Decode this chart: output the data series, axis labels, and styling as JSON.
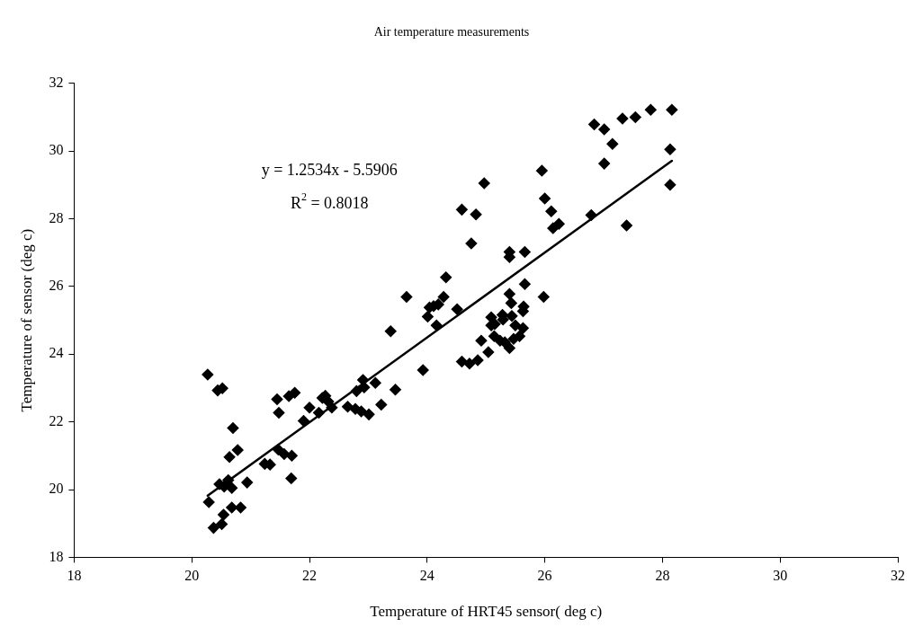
{
  "chart_data": {
    "type": "scatter",
    "title": "Air temperature measurements",
    "xlabel": "Temperature of HRT45 sensor( deg c)",
    "ylabel": "Temperature of sensor (deg c)",
    "xlim": [
      18,
      32
    ],
    "xticks": [
      18,
      20,
      22,
      24,
      26,
      28,
      30,
      32
    ],
    "ylim": [
      18,
      32
    ],
    "yticks": [
      18,
      20,
      22,
      24,
      26,
      28,
      30,
      32
    ],
    "grid": false,
    "legend": false,
    "marker": "diamond",
    "annotations": [
      "y = 1.2534x - 5.5906",
      "R$^{2}$ = 0.8018"
    ],
    "series": [
      {
        "color": "#000000",
        "x": [
          25.95,
          26.0,
          26.11,
          26.14,
          26.24,
          25.98,
          26.79,
          26.84,
          27.01,
          27.15,
          27.01,
          27.32,
          27.54,
          27.8,
          28.16,
          28.13,
          28.13,
          27.39,
          24.59,
          24.83,
          24.75,
          25.4,
          25.4,
          25.66,
          24.32,
          23.65,
          24.28,
          24.04,
          24.11,
          24.19,
          24.01,
          24.51,
          24.16,
          23.38,
          25.66,
          25.4,
          25.43,
          25.64,
          25.63,
          25.09,
          25.28,
          25.44,
          25.09,
          25.15,
          25.29,
          25.5,
          25.63,
          25.14,
          25.57,
          25.24,
          25.32,
          25.4,
          25.47,
          24.92,
          25.04,
          24.59,
          24.72,
          24.86,
          23.93,
          23.46,
          23.22,
          24.97,
          22.91,
          22.93,
          22.8,
          23.12,
          22.65,
          22.78,
          22.88,
          23.01,
          21.9,
          22.0,
          22.16,
          22.22,
          22.27,
          22.32,
          22.38,
          21.45,
          21.65,
          21.75,
          21.48,
          20.27,
          20.44,
          20.52,
          20.7,
          20.78,
          20.64,
          21.47,
          21.57,
          21.7,
          21.24,
          21.33,
          21.69,
          20.94,
          20.47,
          20.55,
          20.62,
          20.68,
          20.29,
          20.68,
          20.83,
          20.54,
          20.51,
          20.37
        ],
        "values": [
          29.42,
          28.6,
          28.22,
          27.72,
          27.85,
          25.69,
          28.11,
          30.79,
          30.64,
          30.21,
          29.63,
          30.96,
          31.0,
          31.22,
          31.22,
          30.05,
          29.0,
          27.8,
          28.27,
          28.13,
          27.27,
          27.02,
          26.87,
          27.02,
          26.27,
          25.69,
          25.69,
          25.38,
          25.42,
          25.47,
          25.11,
          25.33,
          24.85,
          24.68,
          26.07,
          25.78,
          25.51,
          25.41,
          25.27,
          25.09,
          25.16,
          25.13,
          24.85,
          24.89,
          25.02,
          24.85,
          24.77,
          24.53,
          24.53,
          24.4,
          24.35,
          24.18,
          24.45,
          24.4,
          24.06,
          23.78,
          23.72,
          23.82,
          23.53,
          22.95,
          22.51,
          29.05,
          23.24,
          23.02,
          22.91,
          23.15,
          22.45,
          22.38,
          22.31,
          22.22,
          22.03,
          22.42,
          22.27,
          22.71,
          22.77,
          22.6,
          22.42,
          22.67,
          22.76,
          22.86,
          22.27,
          23.4,
          22.93,
          22.99,
          21.82,
          21.17,
          20.96,
          21.18,
          21.05,
          21.0,
          20.76,
          20.74,
          20.33,
          20.21,
          20.16,
          20.09,
          20.28,
          20.05,
          19.63,
          19.47,
          19.47,
          19.26,
          18.98,
          18.87
        ]
      },
      {
        "type": "line",
        "color": "#000000",
        "marker": "none",
        "line_style": "solid",
        "x": [
          20.27,
          28.16
        ],
        "values": [
          19.82,
          29.71
        ]
      }
    ]
  }
}
